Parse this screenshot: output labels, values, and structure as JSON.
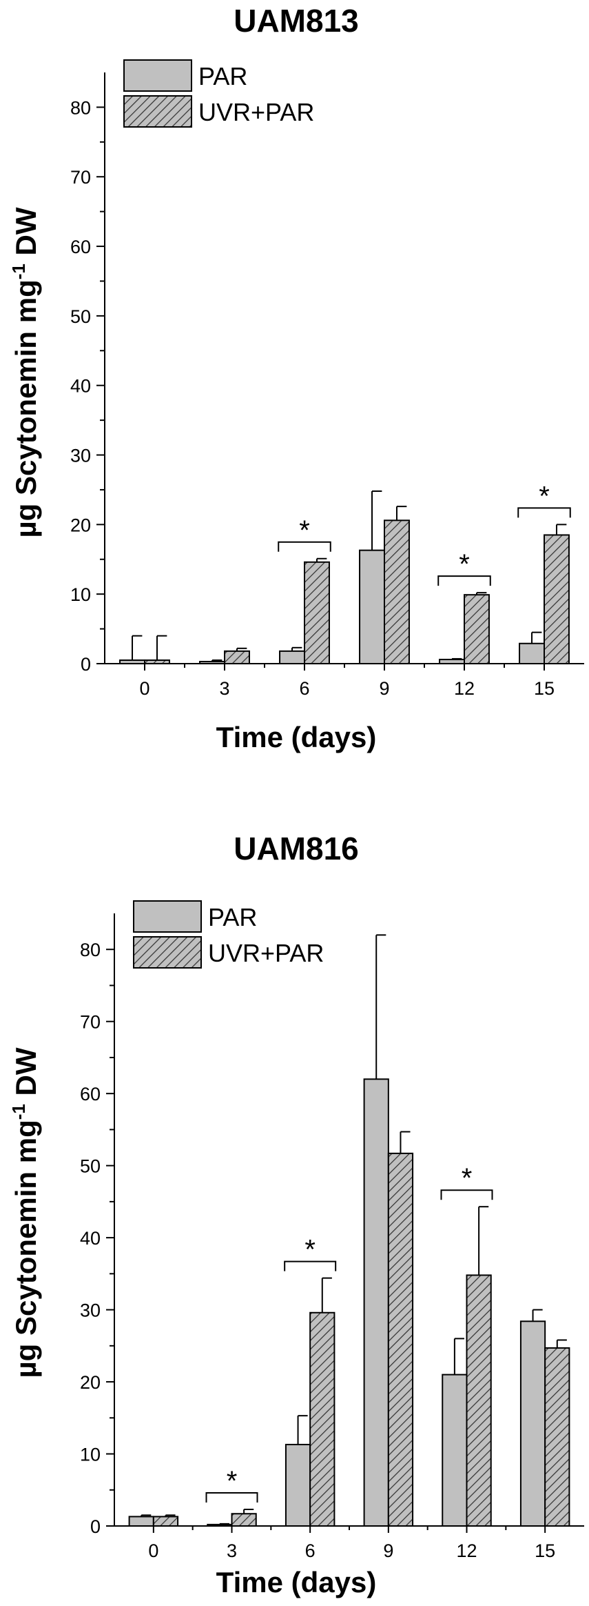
{
  "chart_data": [
    {
      "type": "bar",
      "title": "UAM813",
      "xlabel": "Time (days)",
      "ylabel": "µg Scytonemin mg",
      "ylabel_sup": "-1",
      "ylabel_tail": " DW",
      "categories": [
        "0",
        "3",
        "6",
        "9",
        "12",
        "15"
      ],
      "ylim": [
        0,
        85
      ],
      "yticks": [
        0,
        10,
        20,
        30,
        40,
        50,
        60,
        70,
        80
      ],
      "legend_position": "top-left",
      "series": [
        {
          "name": "PAR",
          "fill": "#c0c0c0",
          "pattern": "none",
          "values": [
            0.5,
            0.3,
            1.8,
            16.3,
            0.6,
            2.9
          ],
          "errors": [
            3.5,
            0.2,
            0.5,
            8.5,
            0.1,
            1.6
          ]
        },
        {
          "name": "UVR+PAR",
          "fill": "#c0c0c0",
          "pattern": "hatch",
          "values": [
            0.5,
            1.8,
            14.6,
            20.6,
            9.9,
            18.5
          ],
          "errors": [
            3.5,
            0.4,
            0.5,
            2.0,
            0.3,
            1.5
          ]
        }
      ],
      "significance": [
        {
          "category": "6",
          "label": "*"
        },
        {
          "category": "12",
          "label": "*"
        },
        {
          "category": "15",
          "label": "*"
        }
      ]
    },
    {
      "type": "bar",
      "title": "UAM816",
      "xlabel": "Time (days)",
      "ylabel": "µg Scytonemin mg",
      "ylabel_sup": "-1",
      "ylabel_tail": " DW",
      "categories": [
        "0",
        "3",
        "6",
        "9",
        "12",
        "15"
      ],
      "ylim": [
        0,
        85
      ],
      "yticks": [
        0,
        10,
        20,
        30,
        40,
        50,
        60,
        70,
        80
      ],
      "legend_position": "top-left",
      "series": [
        {
          "name": "PAR",
          "fill": "#c0c0c0",
          "pattern": "none",
          "values": [
            1.3,
            0.2,
            11.3,
            62.0,
            21.0,
            28.4
          ],
          "errors": [
            0.2,
            0.1,
            4.0,
            20.0,
            5.0,
            1.6
          ]
        },
        {
          "name": "UVR+PAR",
          "fill": "#c0c0c0",
          "pattern": "hatch",
          "values": [
            1.3,
            1.7,
            29.6,
            51.7,
            34.8,
            24.7
          ],
          "errors": [
            0.2,
            0.6,
            4.8,
            3.0,
            9.5,
            1.1
          ]
        }
      ],
      "significance": [
        {
          "category": "3",
          "label": "*"
        },
        {
          "category": "6",
          "label": "*"
        },
        {
          "category": "12",
          "label": "*"
        }
      ]
    }
  ]
}
